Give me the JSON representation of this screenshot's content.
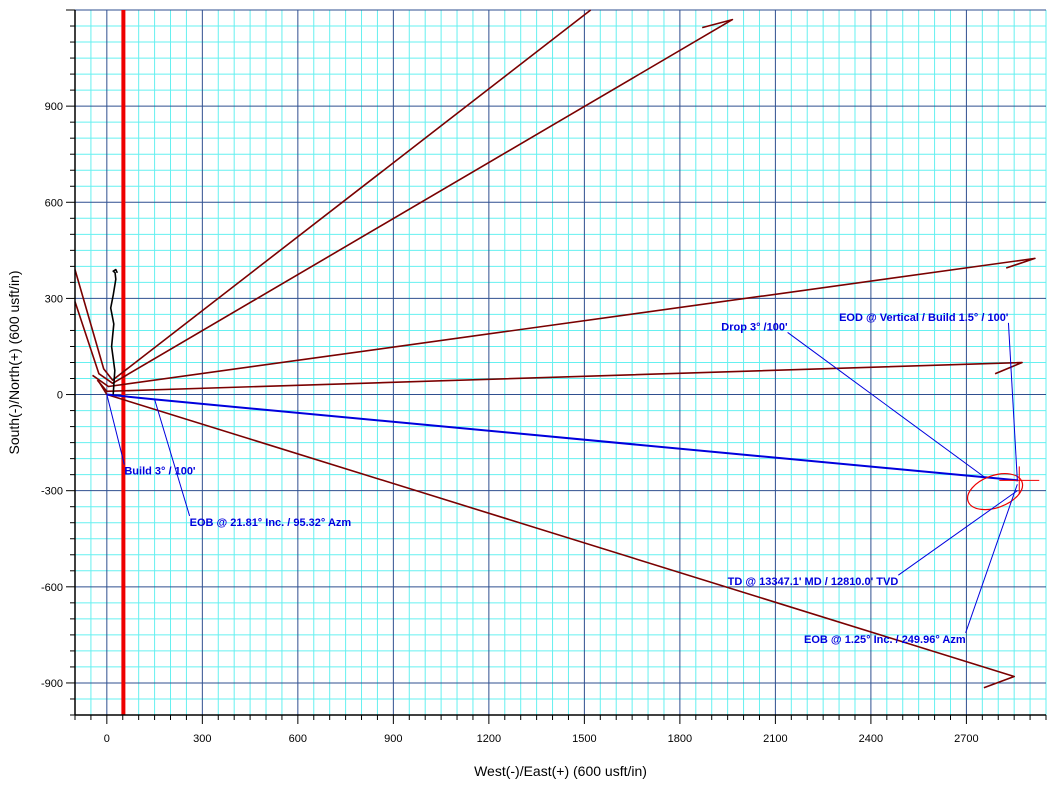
{
  "chart_data": {
    "type": "line",
    "xlabel": "West(-)/East(+) (600 usft/in)",
    "ylabel": "South(-)/North(+) (600 usft/in)",
    "xlim": [
      -100,
      2950
    ],
    "ylim": [
      -1000,
      1200
    ],
    "x_major_ticks": [
      0,
      300,
      600,
      900,
      1200,
      1500,
      1800,
      2100,
      2400,
      2700
    ],
    "y_major_ticks": [
      -900,
      -600,
      -300,
      0,
      300,
      600,
      900
    ],
    "major_grid_step": 300,
    "minor_grid_step": 50,
    "grid": true,
    "colors": {
      "minor_grid": "#66f0f0",
      "major_grid": "#2f4f8f",
      "offset_wells": "#7a0000",
      "plan": "#0000dd",
      "lease_line": "#ee0000",
      "actual": "#000000"
    },
    "lease_line_x": 52,
    "series": [
      {
        "role": "offset",
        "x": [
          -100,
          -10,
          18,
          1520
        ],
        "y": [
          390,
          80,
          45,
          1200
        ]
      },
      {
        "role": "offset",
        "x": [
          -100,
          -25,
          18,
          1965,
          1870
        ],
        "y": [
          290,
          65,
          35,
          1170,
          1145
        ]
      },
      {
        "role": "offset",
        "x": [
          -45,
          5,
          2915,
          2825
        ],
        "y": [
          60,
          25,
          425,
          395
        ]
      },
      {
        "role": "offset",
        "x": [
          -30,
          0,
          2875,
          2790
        ],
        "y": [
          45,
          10,
          100,
          65
        ]
      },
      {
        "role": "offset",
        "x": [
          -25,
          0,
          2850,
          2755
        ],
        "y": [
          40,
          0,
          -880,
          -915
        ]
      },
      {
        "role": "plan",
        "x": [
          0,
          0,
          150,
          2862
        ],
        "y": [
          0,
          0,
          -15,
          -268
        ]
      },
      {
        "role": "actual",
        "x": [
          20,
          25,
          15,
          22,
          12,
          20,
          28,
          26,
          20,
          28,
          33
        ],
        "y": [
          0,
          75,
          150,
          220,
          270,
          310,
          360,
          380,
          385,
          390,
          380
        ]
      }
    ],
    "target_circle": {
      "x": 2790,
      "y": -303,
      "rx": 90,
      "ry": 50
    },
    "target_cross": {
      "x": 2866,
      "y": -268
    },
    "annotations": [
      {
        "text": "Build 3° / 100'",
        "x": 55,
        "y": -250,
        "anchor_x": 0,
        "anchor_y": 0
      },
      {
        "text": "EOB @ 21.81° Inc. / 95.32° Azm",
        "x": 260,
        "y": -410,
        "anchor_x": 150,
        "anchor_y": -15
      },
      {
        "text": "Drop 3° /100'",
        "x": 1930,
        "y": 200,
        "anchor_x": 2760,
        "anchor_y": -260
      },
      {
        "text": "EOD @ Vertical / Build 1.5° / 100'",
        "x": 2300,
        "y": 230,
        "anchor_x": 2860,
        "anchor_y": -268
      },
      {
        "text": "TD @ 13347.1' MD / 12810.0' TVD",
        "x": 1950,
        "y": -595,
        "anchor_x": 2860,
        "anchor_y": -300
      },
      {
        "text": "EOB @ 1.25° Inc. / 249.96° Azm",
        "x": 2190,
        "y": -775,
        "anchor_x": 2860,
        "anchor_y": -280
      }
    ]
  }
}
